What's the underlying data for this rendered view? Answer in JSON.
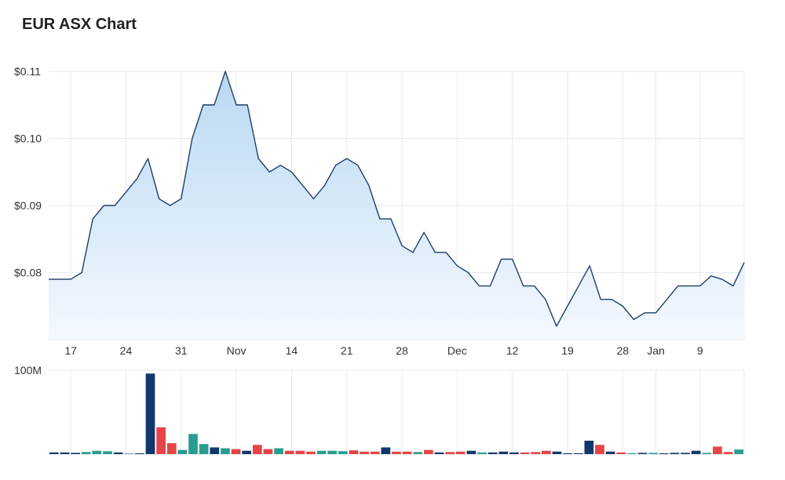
{
  "title": "EUR ASX Chart",
  "colors": {
    "line": "#1b3f6b",
    "area_top": "#b9d8f2",
    "area_bottom": "#f4f9fe",
    "vol_dark": "#12386b",
    "vol_red": "#e64545",
    "vol_teal": "#2a9d8f",
    "grid": "#e6e9ee"
  },
  "chart_data": [
    {
      "type": "area",
      "y_tick_labels": [
        "$0.11",
        "$0.10",
        "$0.09",
        "$0.08"
      ],
      "y_ticks": [
        0.11,
        0.1,
        0.09,
        0.08
      ],
      "ylim": [
        0.07,
        0.11
      ],
      "x_tick_labels": [
        "17",
        "24",
        "31",
        "Nov",
        "14",
        "21",
        "28",
        "Dec",
        "12",
        "19",
        "28",
        "Jan",
        "9"
      ],
      "x_tick_index": [
        2,
        7,
        12,
        17,
        22,
        27,
        32,
        37,
        42,
        47,
        52,
        55,
        59
      ],
      "values": [
        0.079,
        0.079,
        0.079,
        0.08,
        0.088,
        0.09,
        0.09,
        0.092,
        0.094,
        0.097,
        0.091,
        0.09,
        0.091,
        0.1,
        0.105,
        0.105,
        0.11,
        0.105,
        0.105,
        0.097,
        0.095,
        0.096,
        0.095,
        0.093,
        0.091,
        0.093,
        0.096,
        0.097,
        0.096,
        0.093,
        0.088,
        0.088,
        0.084,
        0.083,
        0.086,
        0.083,
        0.083,
        0.081,
        0.08,
        0.078,
        0.078,
        0.082,
        0.082,
        0.078,
        0.078,
        0.076,
        0.072,
        0.075,
        0.078,
        0.081,
        0.076,
        0.076,
        0.075,
        0.073,
        0.074,
        0.074,
        0.076,
        0.078,
        0.078,
        0.078,
        0.0795,
        0.079,
        0.078,
        0.0815
      ],
      "grid": true
    },
    {
      "type": "bar",
      "y_tick_labels": [
        "100M"
      ],
      "y_ticks": [
        100
      ],
      "ylim": [
        0,
        100
      ],
      "values": [
        2,
        2,
        1.5,
        2.5,
        4,
        3.5,
        2,
        0.5,
        1,
        96,
        32,
        13,
        5,
        24,
        12,
        8,
        7,
        6,
        4,
        11,
        6,
        7,
        4,
        4,
        3,
        4,
        4,
        3.5,
        4.5,
        3,
        3,
        8,
        3,
        3,
        2.5,
        5,
        2,
        2.5,
        3,
        4,
        2,
        2,
        3,
        2,
        2,
        2.5,
        4,
        3,
        1,
        1,
        16,
        11,
        3,
        2,
        1,
        1.5,
        1.5,
        1,
        1.5,
        1.5,
        4,
        1.5,
        9,
        2.5,
        5.5
      ],
      "colors": [
        "dark",
        "dark",
        "dark",
        "teal",
        "teal",
        "teal",
        "dark",
        "dark",
        "dark",
        "dark",
        "red",
        "red",
        "teal",
        "teal",
        "teal",
        "dark",
        "teal",
        "red",
        "dark",
        "red",
        "red",
        "teal",
        "red",
        "red",
        "red",
        "teal",
        "teal",
        "teal",
        "red",
        "red",
        "red",
        "dark",
        "red",
        "red",
        "teal",
        "red",
        "dark",
        "red",
        "red",
        "dark",
        "teal",
        "dark",
        "dark",
        "dark",
        "red",
        "red",
        "red",
        "dark",
        "dark",
        "dark",
        "dark",
        "red",
        "dark",
        "red",
        "teal",
        "dark",
        "teal",
        "dark",
        "dark",
        "dark",
        "dark",
        "teal",
        "red",
        "red",
        "teal"
      ],
      "grid": true
    }
  ]
}
